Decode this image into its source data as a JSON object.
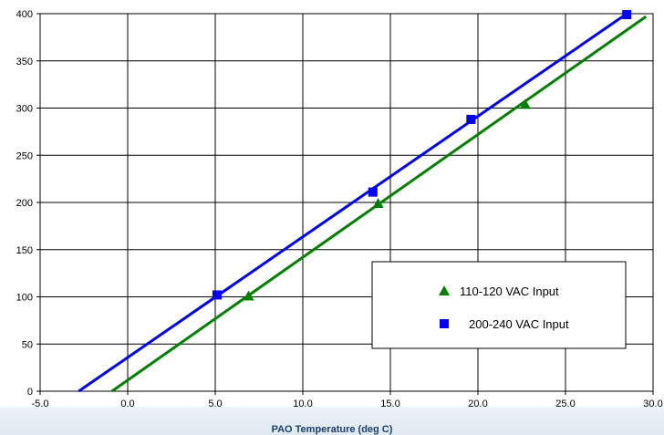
{
  "chart_data": {
    "type": "scatter",
    "title": "",
    "xlabel": "PAO Temperature (deg C)",
    "ylabel": "",
    "xlim": [
      -5.0,
      30.0
    ],
    "ylim": [
      0,
      400
    ],
    "x_ticks": [
      -5.0,
      0.0,
      5.0,
      10.0,
      15.0,
      20.0,
      25.0,
      30.0
    ],
    "x_tick_labels": [
      "-5.0",
      "0.0",
      "5.0",
      "10.0",
      "15.0",
      "20.0",
      "25.0",
      "30.0"
    ],
    "y_ticks": [
      0,
      50,
      100,
      150,
      200,
      250,
      300,
      350,
      400
    ],
    "y_tick_labels": [
      "0",
      "50",
      "100",
      "150",
      "200",
      "250",
      "300",
      "350",
      "400"
    ],
    "grid": true,
    "legend_position": "bottom-right",
    "series": [
      {
        "name": "110-120 VAC Input",
        "marker": "triangle",
        "color": "#008000",
        "x": [
          6.9,
          14.3,
          22.7
        ],
        "y": [
          101,
          199,
          304
        ],
        "trendline": {
          "x": [
            -0.9,
            29.6
          ],
          "y": [
            0,
            397
          ]
        }
      },
      {
        "name": "200-240 VAC Input",
        "marker": "square",
        "color": "#0000ff",
        "x": [
          5.1,
          14.0,
          19.6,
          28.5
        ],
        "y": [
          102,
          211,
          288,
          399
        ],
        "trendline": {
          "x": [
            -2.8,
            28.5
          ],
          "y": [
            0,
            400
          ]
        }
      }
    ]
  }
}
